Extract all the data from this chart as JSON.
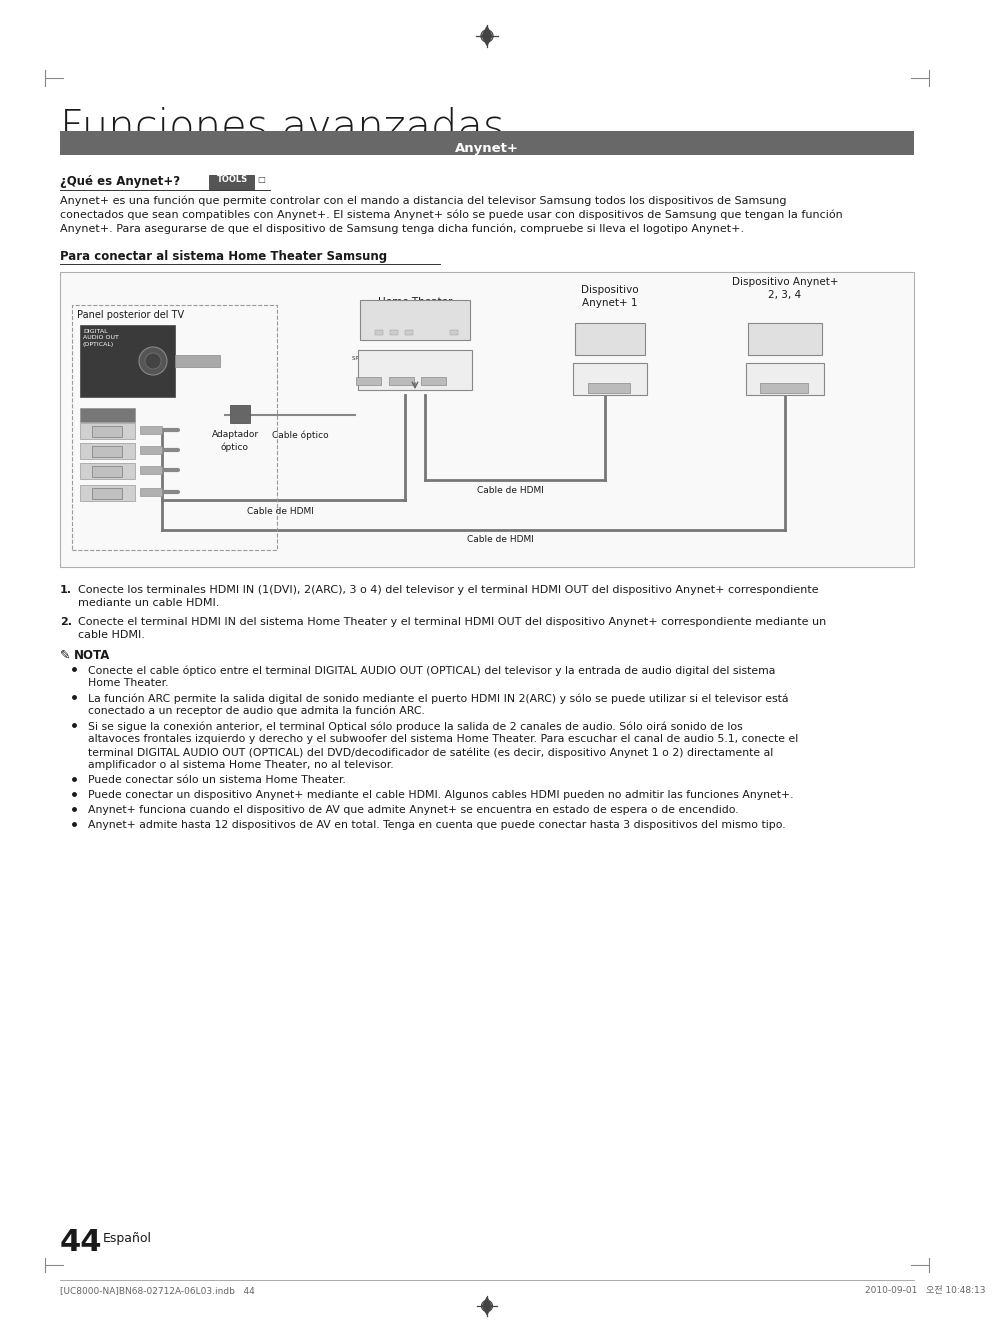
{
  "title": "Funciones avanzadas",
  "section_bar_text": "Anynet+",
  "section_bar_color": "#686868",
  "section_bar_text_color": "#ffffff",
  "subtitle1": "¿Qué es Anynet+?",
  "tools_label": "TOOLS",
  "para1_lines": [
    "Anynet+ es una función que permite controlar con el mando a distancia del televisor Samsung todos los dispositivos de Samsung",
    "conectados que sean compatibles con Anynet+. El sistema Anynet+ sólo se puede usar con dispositivos de Samsung que tengan la función",
    "Anynet+. Para asegurarse de que el dispositivo de Samsung tenga dicha función, compruebe si lleva el logotipo Anynet+."
  ],
  "subtitle2": "Para conectar al sistema Home Theater Samsung",
  "num1": "Conecte los terminales HDMI IN (1(DVI), 2(ARC), 3 o 4) del televisor y el terminal HDMI OUT del dispositivo Anynet+ correspondiente",
  "num1b": "mediante un cable HDMI.",
  "num2": "Conecte el terminal HDMI IN del sistema Home Theater y el terminal HDMI OUT del dispositivo Anynet+ correspondiente mediante un",
  "num2b": "cable HDMI.",
  "nota_label": "NOTA",
  "bullet1a": "Conecte el cable óptico entre el terminal ",
  "bullet1b": "DIGITAL AUDIO OUT (OPTICAL)",
  "bullet1c": " del televisor y la entrada de audio digital del sistema",
  "bullet1d": "Home Theater.",
  "bullet2a": "La función ARC permite la salida digital de sonido mediante el puerto ",
  "bullet2b": "HDMI IN 2(ARC)",
  "bullet2c": " y sólo se puede utilizar si el televisor está",
  "bullet2d": "conectado a un receptor de audio que admita la función ARC.",
  "bullet3a": "Si se sigue la conexión anterior, el terminal Optical sólo produce la salida de 2 canales de audio. Sólo oirá sonido de los",
  "bullet3b": "altavoces frontales izquierdo y derecho y el subwoofer del sistema Home Theater. Para escuchar el canal de audio 5.1, conecte el",
  "bullet3c": "terminal ",
  "bullet3d": "DIGITAL AUDIO OUT (OPTICAL)",
  "bullet3e": " del DVD/decodificador de satélite (es decir, dispositivo Anynet 1 o 2) directamente al",
  "bullet3f": "amplificador o al sistema Home Theater, no al televisor.",
  "bullet4": "Puede conectar sólo un sistema Home Theater.",
  "bullet5": "Puede conectar un dispositivo Anynet+ mediante el cable HDMI. Algunos cables HDMI pueden no admitir las funciones Anynet+.",
  "bullet6": "Anynet+ funciona cuando el dispositivo de AV que admite Anynet+ se encuentra en estado de espera o de encendido.",
  "bullet7": "Anynet+ admite hasta 12 dispositivos de AV en total. Tenga en cuenta que puede conectar hasta 3 dispositivos del mismo tipo.",
  "page_number": "44",
  "language": "Español",
  "footer_left": "[UC8000-NA]BN68-02712A-06L03.indb   44",
  "footer_right": "2010-09-01   오전 10:48:13",
  "bg_color": "#ffffff",
  "text_color": "#1a1a1a"
}
